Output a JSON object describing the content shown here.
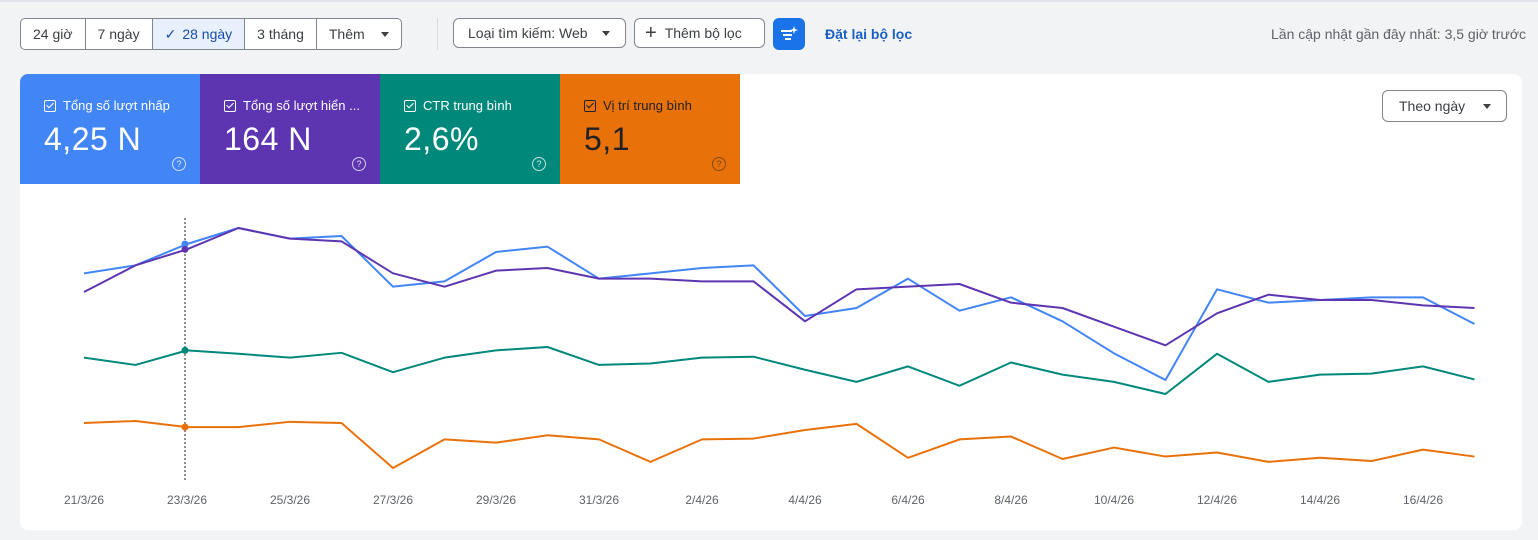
{
  "toolbar": {
    "ranges": [
      "24 giờ",
      "7 ngày",
      "28 ngày",
      "3 tháng"
    ],
    "active_range": "28 ngày",
    "more_label": "Thêm",
    "search_type_label": "Loại tìm kiếm: Web",
    "add_filter_label": "Thêm bộ lọc",
    "reset_filter_label": "Đặt lại bộ lọc",
    "last_updated": "Lần cập nhật gần đây nhất: 3,5 giờ trước"
  },
  "metrics": [
    {
      "label": "Tổng số lượt nhấp",
      "value": "4,25 N",
      "color": "#4285f4"
    },
    {
      "label": "Tổng số lượt hiển ...",
      "value": "164 N",
      "color": "#5e35b1"
    },
    {
      "label": "CTR trung bình",
      "value": "2,6%",
      "color": "#00897b"
    },
    {
      "label": "Vị trí trung bình",
      "value": "5,1",
      "color": "#e8710a"
    }
  ],
  "granularity_label": "Theo ngày",
  "chart_data": {
    "type": "line",
    "x": [
      "21/3/26",
      "22/3/26",
      "23/3/26",
      "24/3/26",
      "25/3/26",
      "26/3/26",
      "27/3/26",
      "28/3/26",
      "29/3/26",
      "30/3/26",
      "31/3/26",
      "1/4/26",
      "2/4/26",
      "3/4/26",
      "4/4/26",
      "5/4/26",
      "6/4/26",
      "7/4/26",
      "8/4/26",
      "9/4/26",
      "10/4/26",
      "11/4/26",
      "12/4/26",
      "13/4/26",
      "14/4/26",
      "15/4/26",
      "16/4/26",
      "17/4/26"
    ],
    "tick_labels": [
      "21/3/26",
      "23/3/26",
      "25/3/26",
      "27/3/26",
      "29/3/26",
      "31/3/26",
      "2/4/26",
      "4/4/26",
      "6/4/26",
      "8/4/26",
      "10/4/26",
      "12/4/26",
      "14/4/26",
      "16/4/26"
    ],
    "series": [
      {
        "name": "Tổng số lượt nhấp",
        "color": "#4285f4",
        "values": [
          155,
          158,
          166,
          172,
          168,
          169,
          150,
          152,
          163,
          165,
          153,
          155,
          157,
          158,
          139,
          142,
          153,
          141,
          146,
          137,
          125,
          115,
          149,
          144,
          145,
          146,
          146,
          136
        ]
      },
      {
        "name": "Tổng số lượt hiển ...",
        "color": "#5e35b1",
        "values": [
          148,
          158,
          164,
          172,
          168,
          167,
          155,
          150,
          156,
          157,
          153,
          153,
          152,
          152,
          137,
          149,
          150,
          151,
          144,
          142,
          135,
          128,
          140,
          147,
          145,
          145,
          143,
          142
        ]
      },
      {
        "name": "CTR trung bình",
        "color": "#00897b",
        "values": [
          3.3,
          3.15,
          3.45,
          3.38,
          3.3,
          3.4,
          3.0,
          3.3,
          3.45,
          3.52,
          3.15,
          3.18,
          3.3,
          3.32,
          3.05,
          2.8,
          3.12,
          2.72,
          3.2,
          2.95,
          2.8,
          2.55,
          3.38,
          2.8,
          2.95,
          2.97,
          3.12,
          2.85
        ]
      },
      {
        "name": "Vị trí trung bình",
        "color": "#e8710a",
        "values": [
          5.1,
          5.05,
          5.2,
          5.2,
          5.07,
          5.1,
          6.2,
          5.5,
          5.58,
          5.4,
          5.5,
          6.05,
          5.5,
          5.48,
          5.27,
          5.12,
          5.95,
          5.5,
          5.43,
          5.98,
          5.7,
          5.92,
          5.82,
          6.05,
          5.95,
          6.03,
          5.75,
          5.92
        ]
      }
    ],
    "hover_index": 2,
    "grid": false,
    "legend": "none"
  }
}
